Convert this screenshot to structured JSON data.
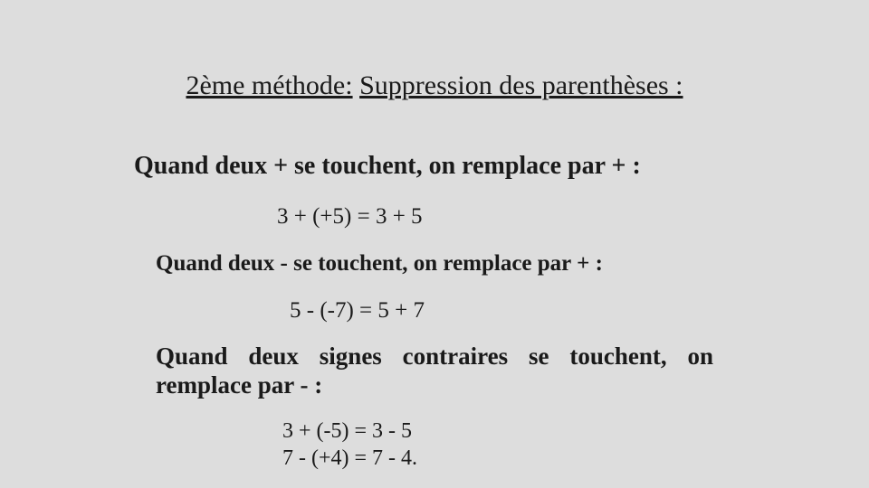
{
  "background_color": "#dddddd",
  "text_color": "#1a1a1a",
  "font_family": "Times New Roman",
  "title": {
    "label": "2ème méthode:",
    "heading": "Suppression des parenthèses :",
    "fontsize_pt": 30
  },
  "rule1": {
    "text": "Quand deux + se touchent, on remplace par + :",
    "fontsize_pt": 28,
    "weight": "bold"
  },
  "example1": {
    "text": "3 + (+5) = 3 + 5",
    "fontsize_pt": 25
  },
  "rule2": {
    "text": "Quand deux - se touchent, on remplace par + :",
    "fontsize_pt": 25,
    "weight": "bold"
  },
  "example2": {
    "text": "5 - (-7) = 5 + 7",
    "fontsize_pt": 25
  },
  "rule3": {
    "text": "Quand deux signes contraires se touchent, on remplace par - :",
    "fontsize_pt": 27,
    "weight": "bold"
  },
  "example3a": {
    "text": "3 + (-5) = 3 - 5",
    "fontsize_pt": 24
  },
  "example3b": {
    "text": "7 - (+4) = 7 - 4.",
    "fontsize_pt": 24
  }
}
